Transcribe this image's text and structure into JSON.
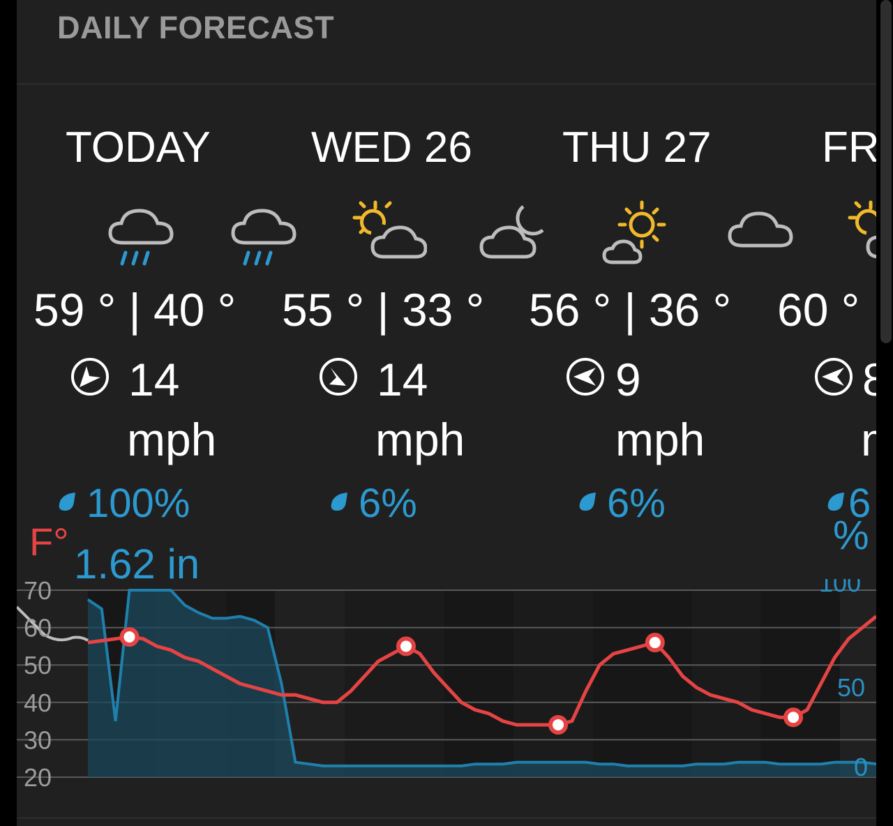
{
  "section": {
    "title": "DAILY FORECAST"
  },
  "days": [
    {
      "label": "TODAY",
      "temps": "59 ° | 40 °",
      "wind_speed": "14",
      "wind_unit": "mph",
      "precip": "100%",
      "rain_amount": "1.62 in",
      "icons": [
        "rain-cloud-icon",
        "rain-cloud-icon"
      ]
    },
    {
      "label": "WED 26",
      "temps": "55 ° | 33 °",
      "wind_speed": "14",
      "wind_unit": "mph",
      "precip": "6%",
      "icons": [
        "partly-sunny-icon",
        "partly-cloudy-night-icon"
      ]
    },
    {
      "label": "THU 27",
      "temps": "56 ° | 36 °",
      "wind_speed": "9",
      "wind_unit": "mph",
      "precip": "6%",
      "icons": [
        "sunny-cloud-icon",
        "cloud-icon"
      ]
    },
    {
      "label": "FR",
      "temps": "60 °",
      "wind_speed": "8",
      "wind_unit": "m",
      "precip": "6",
      "precip_extra": "%",
      "icons": [
        "partly-sunny-icon"
      ]
    }
  ],
  "colors": {
    "temperature": "#e64444",
    "precipitation": "#2c9ad0",
    "text": "#ffffff",
    "muted": "#9a9a9a",
    "background": "#202020"
  },
  "chart_data": {
    "type": "line",
    "temp_axis_label": "F°",
    "temp_ticks": [
      "70",
      "60",
      "50",
      "40",
      "30",
      "20"
    ],
    "temp_range": [
      20,
      70
    ],
    "precip_ticks": [
      "100",
      "50",
      "0"
    ],
    "precip_range": [
      0,
      100
    ],
    "series": [
      {
        "metric": "temperature",
        "x_hours": [
          0,
          2,
          4,
          6,
          8,
          10,
          12,
          14,
          16,
          18,
          20,
          22,
          24,
          26,
          28,
          30,
          32,
          34,
          36,
          38,
          40,
          42,
          44,
          46,
          48,
          50,
          52,
          54,
          56,
          58,
          60,
          62,
          64,
          66,
          68,
          70,
          72,
          74,
          76,
          78,
          80,
          82,
          84,
          86,
          88,
          90,
          92,
          94,
          96,
          98,
          100,
          102,
          104,
          106,
          108,
          110,
          112,
          114
        ],
        "values": [
          56,
          56.5,
          57,
          57.5,
          57,
          55,
          54,
          52,
          51,
          49,
          47,
          45,
          44,
          43,
          42,
          42,
          41,
          40,
          40,
          43,
          47,
          51,
          53,
          55,
          53,
          48,
          44,
          40,
          38,
          37,
          35,
          34,
          34,
          34,
          34,
          35,
          43,
          50,
          53,
          54,
          55,
          56,
          52,
          47,
          44,
          42,
          41,
          40,
          38,
          37,
          36,
          36,
          38,
          45,
          52,
          57,
          60,
          63
        ]
      },
      {
        "metric": "precipitation_probability",
        "x_hours": [
          0,
          2,
          4,
          6,
          8,
          10,
          12,
          14,
          16,
          18,
          20,
          22,
          24,
          26,
          28,
          30,
          32,
          34,
          36,
          38,
          40,
          42,
          44,
          46,
          48,
          50,
          52,
          54,
          56,
          58,
          60,
          62,
          64,
          66,
          68,
          70,
          72,
          74,
          76,
          78,
          80,
          82,
          84,
          86,
          88,
          90,
          92,
          94,
          96,
          98,
          100,
          102,
          104,
          106,
          108,
          110,
          112,
          114
        ],
        "values": [
          95,
          90,
          30,
          100,
          100,
          100,
          100,
          92,
          88,
          85,
          85,
          86,
          84,
          80,
          50,
          8,
          7,
          6,
          6,
          6,
          6,
          6,
          6,
          6,
          6,
          6,
          6,
          6,
          7,
          7,
          7,
          8,
          8,
          8,
          8,
          8,
          8,
          7,
          7,
          6,
          6,
          6,
          6,
          6,
          7,
          7,
          7,
          8,
          8,
          8,
          7,
          7,
          7,
          7,
          8,
          8,
          8,
          7
        ]
      }
    ]
  }
}
